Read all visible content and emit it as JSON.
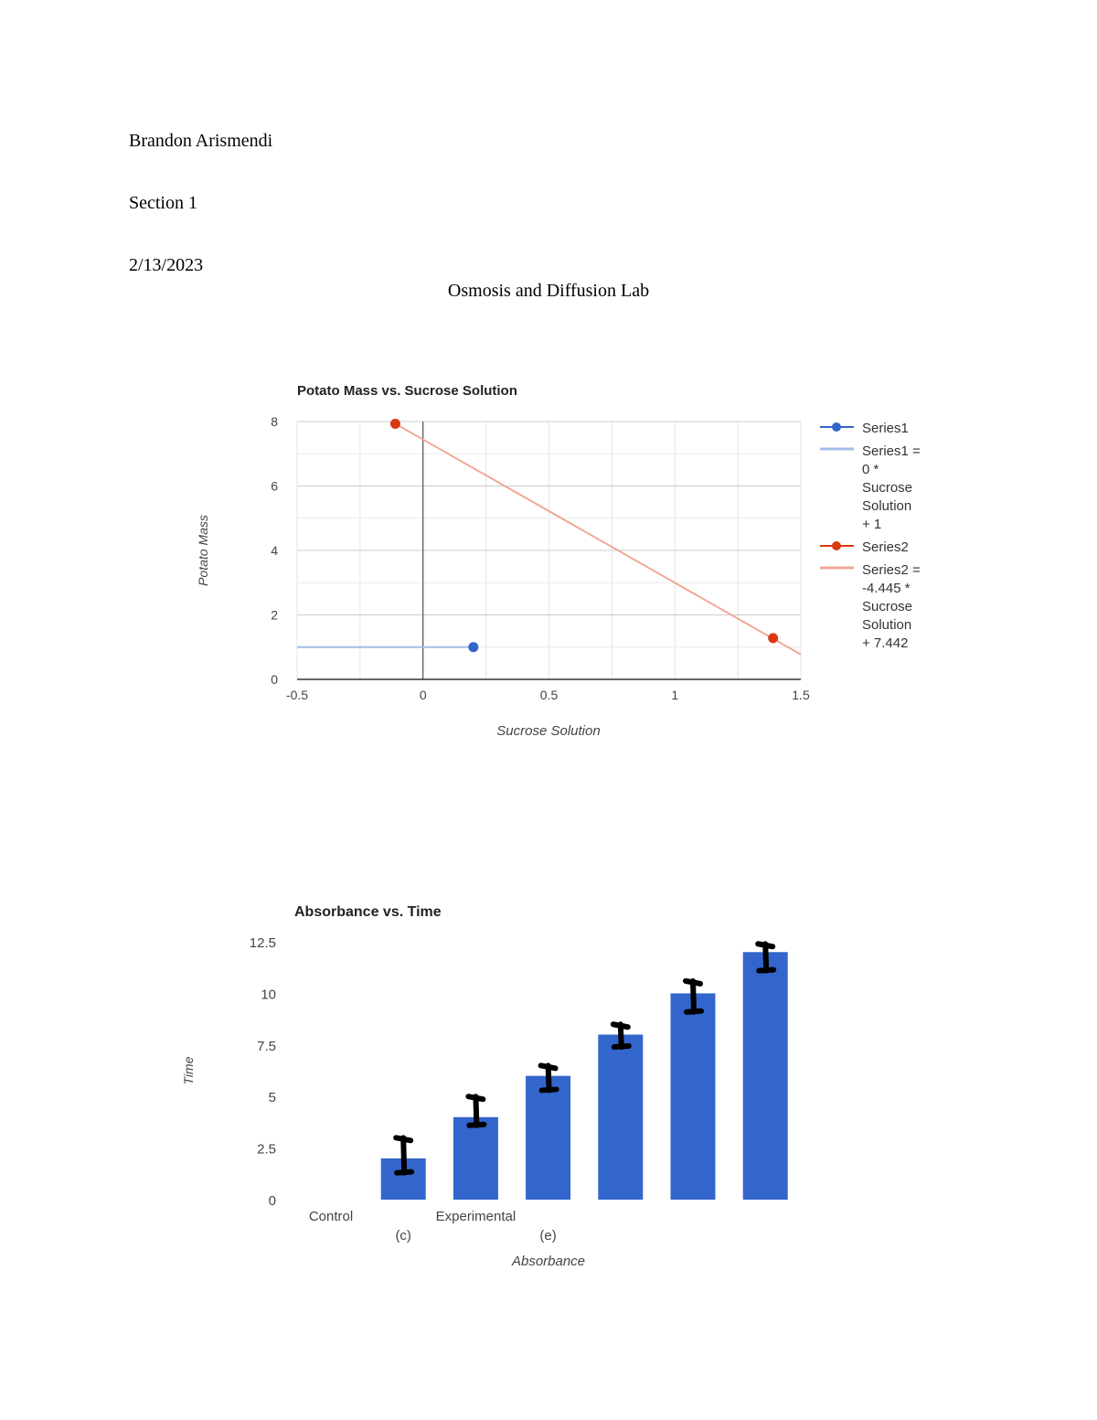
{
  "header": {
    "name": "Brandon Arismendi",
    "section": "Section 1",
    "date": "2/13/2023",
    "title": "Osmosis and Diffusion Lab"
  },
  "chart_data": [
    {
      "type": "scatter",
      "title": "Potato Mass vs. Sucrose Solution",
      "xlabel": "Sucrose Solution",
      "ylabel": "Potato Mass",
      "xlim": [
        -0.5,
        1.5
      ],
      "ylim": [
        0,
        8
      ],
      "xticks": [
        "-0.5",
        "0",
        "0.5",
        "1",
        "1.5"
      ],
      "yticks": [
        "0",
        "2",
        "4",
        "6",
        "8"
      ],
      "grid": true,
      "legend_position": "right",
      "series": [
        {
          "name": "Series1",
          "color": "#3366cc",
          "points": [
            [
              0.2,
              1
            ]
          ],
          "trendline": {
            "label_lines": [
              "Series1 =",
              "0 *",
              "Sucrose",
              "Solution",
              "+ 1"
            ],
            "slope": 0,
            "intercept": 1,
            "x_range": [
              -0.5,
              0.2
            ],
            "color": "#a4bde8"
          }
        },
        {
          "name": "Series2",
          "color": "#dc3912",
          "points": [
            [
              -0.11,
              7.93
            ],
            [
              1.39,
              1.28
            ]
          ],
          "trendline": {
            "label_lines": [
              "Series2 =",
              "-4.445 *",
              "Sucrose",
              "Solution",
              "+ 7.442"
            ],
            "slope": -4.445,
            "intercept": 7.442,
            "x_range": [
              -0.11,
              1.5
            ],
            "color": "#f1a898"
          }
        }
      ]
    },
    {
      "type": "bar",
      "title": "Absorbance vs. Time",
      "xlabel": "Absorbance",
      "ylabel": "Time",
      "ylim": [
        0,
        12.5
      ],
      "yticks": [
        "0",
        "2.5",
        "5",
        "7.5",
        "10",
        "12.5"
      ],
      "x_labels": [
        {
          "slot": 0,
          "row": 1,
          "text": "Control"
        },
        {
          "slot": 1,
          "row": 2,
          "text": "(c)"
        },
        {
          "slot": 2,
          "row": 1,
          "text": "Experimental"
        },
        {
          "slot": 3,
          "row": 2,
          "text": "(e)"
        }
      ],
      "values": [
        null,
        2,
        4,
        6,
        8,
        10,
        12
      ],
      "error_bars_handdrawn": [
        null,
        [
          1.3,
          3.0
        ],
        [
          3.6,
          5.0
        ],
        [
          5.3,
          6.5
        ],
        [
          7.4,
          8.5
        ],
        [
          9.1,
          10.6
        ],
        [
          11.1,
          12.4
        ]
      ],
      "bar_color": "#3366cc",
      "grid": false
    }
  ]
}
